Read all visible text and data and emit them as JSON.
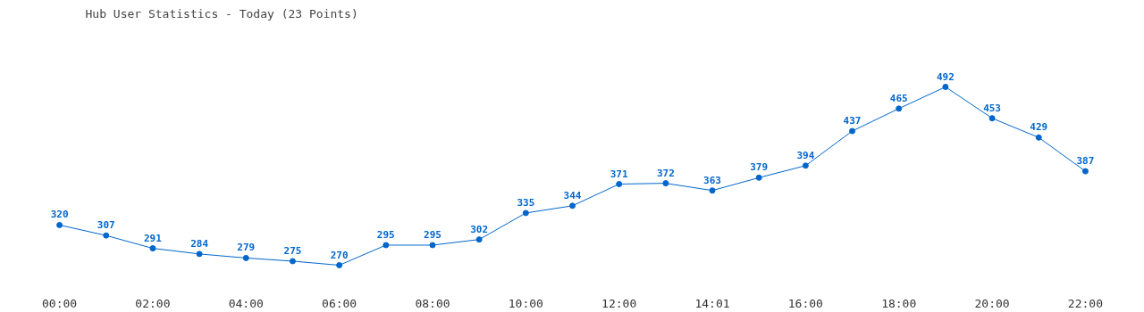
{
  "chart_data": {
    "type": "line",
    "title": "Hub User Statistics - Today (23 Points)",
    "categories": [
      "00:00",
      null,
      "02:00",
      null,
      "04:00",
      null,
      "06:00",
      null,
      "08:00",
      null,
      "10:00",
      null,
      "12:00",
      null,
      "14:01",
      null,
      "16:00",
      null,
      "18:00",
      null,
      "20:00",
      null,
      "22:00"
    ],
    "series": [
      {
        "color": "#0066cc",
        "values": [
          320,
          307,
          291,
          284,
          279,
          275,
          270,
          295,
          295,
          302,
          335,
          344,
          371,
          372,
          363,
          379,
          394,
          437,
          465,
          492,
          453,
          429,
          387
        ]
      }
    ],
    "data_labels": true,
    "marker": "circle",
    "line_style": "solid",
    "grid": false
  }
}
